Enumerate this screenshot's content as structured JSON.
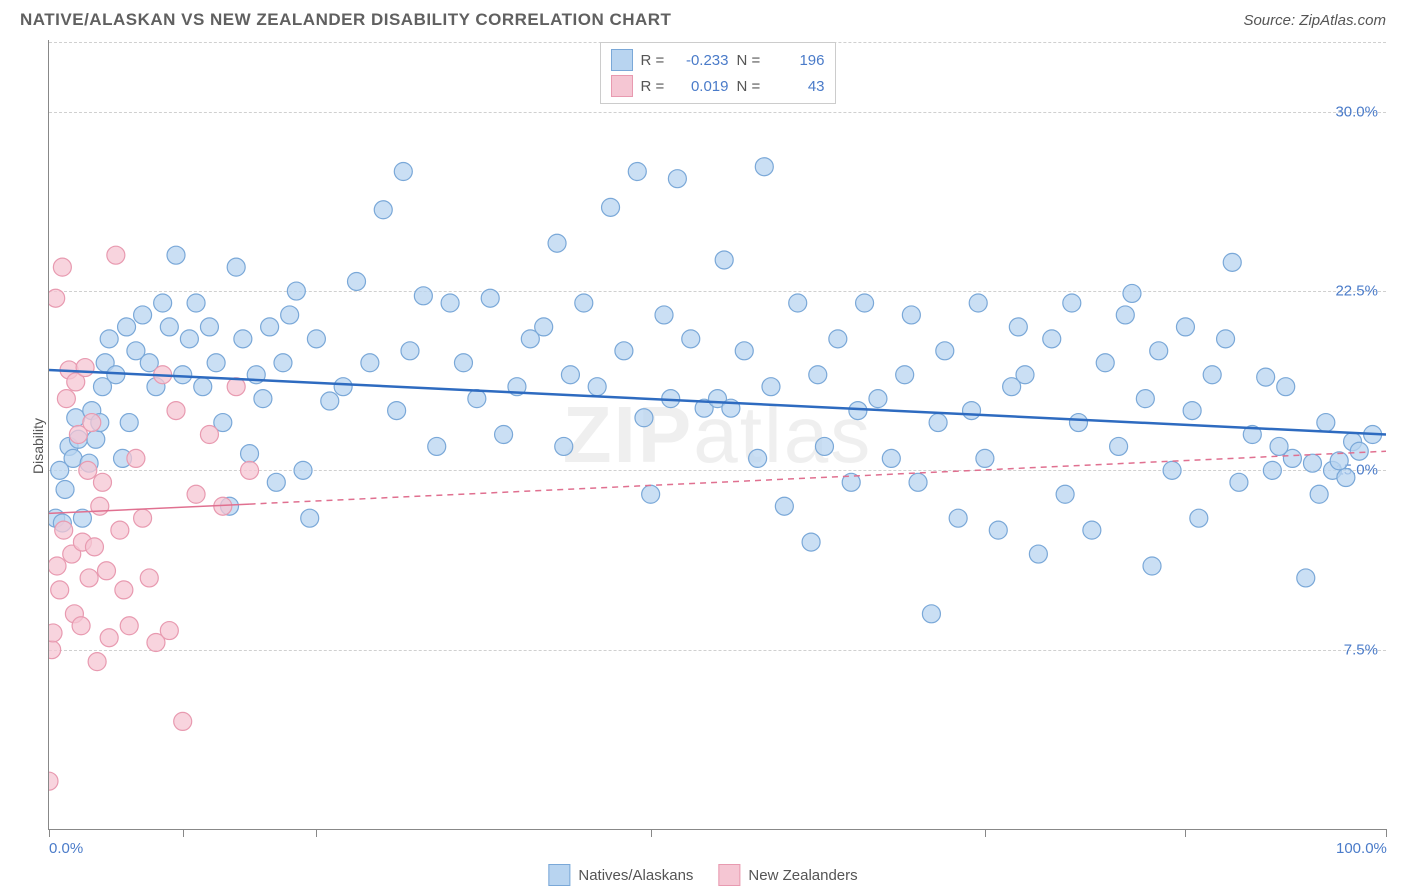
{
  "title": "NATIVE/ALASKAN VS NEW ZEALANDER DISABILITY CORRELATION CHART",
  "source": "Source: ZipAtlas.com",
  "ylabel": "Disability",
  "watermark_bold": "ZIP",
  "watermark_rest": "atlas",
  "chart": {
    "type": "scatter",
    "background_color": "#ffffff",
    "grid_color": "#d0d0d0",
    "axis_color": "#888888",
    "tick_label_color": "#4a7bc9",
    "xlim": [
      0,
      100
    ],
    "ylim": [
      0,
      33
    ],
    "yticks": [
      7.5,
      15.0,
      22.5,
      30.0
    ],
    "ytick_labels": [
      "7.5%",
      "15.0%",
      "22.5%",
      "30.0%"
    ],
    "xticks": [
      0,
      10,
      20,
      45,
      70,
      85,
      100
    ],
    "xtick_labels": {
      "0": "0.0%",
      "100": "100.0%"
    },
    "marker_radius": 9,
    "marker_stroke_width": 1.2,
    "series": [
      {
        "id": "natives",
        "label": "Natives/Alaskans",
        "fill": "#b8d4f0",
        "stroke": "#7aa8d8",
        "fill_opacity": 0.75,
        "R": "-0.233",
        "N": "196",
        "trendline": {
          "x1": 0,
          "y1": 19.2,
          "x2": 100,
          "y2": 16.5,
          "color": "#2e6bc0",
          "width": 2.5,
          "dash": "none"
        },
        "points": [
          [
            0.5,
            13.0
          ],
          [
            0.8,
            15.0
          ],
          [
            1.0,
            12.8
          ],
          [
            1.2,
            14.2
          ],
          [
            1.5,
            16.0
          ],
          [
            1.8,
            15.5
          ],
          [
            2.0,
            17.2
          ],
          [
            2.2,
            16.3
          ],
          [
            2.5,
            13.0
          ],
          [
            3.0,
            15.3
          ],
          [
            3.2,
            17.5
          ],
          [
            3.5,
            16.3
          ],
          [
            3.8,
            17.0
          ],
          [
            4.0,
            18.5
          ],
          [
            4.2,
            19.5
          ],
          [
            4.5,
            20.5
          ],
          [
            5.0,
            19.0
          ],
          [
            5.5,
            15.5
          ],
          [
            5.8,
            21.0
          ],
          [
            6.0,
            17.0
          ],
          [
            6.5,
            20.0
          ],
          [
            7.0,
            21.5
          ],
          [
            7.5,
            19.5
          ],
          [
            8.0,
            18.5
          ],
          [
            8.5,
            22.0
          ],
          [
            9.0,
            21.0
          ],
          [
            9.5,
            24.0
          ],
          [
            10.0,
            19.0
          ],
          [
            10.5,
            20.5
          ],
          [
            11.0,
            22.0
          ],
          [
            11.5,
            18.5
          ],
          [
            12.0,
            21.0
          ],
          [
            12.5,
            19.5
          ],
          [
            13.0,
            17.0
          ],
          [
            13.5,
            13.5
          ],
          [
            14.0,
            23.5
          ],
          [
            14.5,
            20.5
          ],
          [
            15.0,
            15.7
          ],
          [
            15.5,
            19.0
          ],
          [
            16.0,
            18.0
          ],
          [
            16.5,
            21.0
          ],
          [
            17.0,
            14.5
          ],
          [
            17.5,
            19.5
          ],
          [
            18.0,
            21.5
          ],
          [
            18.5,
            22.5
          ],
          [
            19.0,
            15.0
          ],
          [
            19.5,
            13.0
          ],
          [
            20.0,
            20.5
          ],
          [
            21.0,
            17.9
          ],
          [
            22.0,
            18.5
          ],
          [
            23.0,
            22.9
          ],
          [
            24.0,
            19.5
          ],
          [
            25.0,
            25.9
          ],
          [
            26.0,
            17.5
          ],
          [
            26.5,
            27.5
          ],
          [
            27.0,
            20.0
          ],
          [
            28.0,
            22.3
          ],
          [
            29.0,
            16.0
          ],
          [
            30.0,
            22.0
          ],
          [
            31.0,
            19.5
          ],
          [
            32.0,
            18.0
          ],
          [
            33.0,
            22.2
          ],
          [
            34.0,
            16.5
          ],
          [
            35.0,
            18.5
          ],
          [
            36.0,
            20.5
          ],
          [
            37.0,
            21.0
          ],
          [
            38.0,
            24.5
          ],
          [
            38.5,
            16.0
          ],
          [
            39.0,
            19.0
          ],
          [
            40.0,
            22.0
          ],
          [
            41.0,
            18.5
          ],
          [
            42.0,
            26.0
          ],
          [
            43.0,
            20.0
          ],
          [
            44.0,
            27.5
          ],
          [
            44.5,
            17.2
          ],
          [
            45.0,
            14.0
          ],
          [
            46.0,
            21.5
          ],
          [
            46.5,
            18.0
          ],
          [
            47.0,
            27.2
          ],
          [
            48.0,
            20.5
          ],
          [
            49.0,
            17.6
          ],
          [
            50.0,
            18.0
          ],
          [
            50.5,
            23.8
          ],
          [
            51.0,
            17.6
          ],
          [
            52.0,
            20.0
          ],
          [
            53.0,
            15.5
          ],
          [
            53.5,
            27.7
          ],
          [
            54.0,
            18.5
          ],
          [
            55.0,
            13.5
          ],
          [
            56.0,
            22.0
          ],
          [
            57.0,
            12.0
          ],
          [
            57.5,
            19.0
          ],
          [
            58.0,
            16.0
          ],
          [
            59.0,
            20.5
          ],
          [
            60.0,
            14.5
          ],
          [
            60.5,
            17.5
          ],
          [
            61.0,
            22.0
          ],
          [
            62.0,
            18.0
          ],
          [
            63.0,
            15.5
          ],
          [
            64.0,
            19.0
          ],
          [
            64.5,
            21.5
          ],
          [
            65.0,
            14.5
          ],
          [
            66.0,
            9.0
          ],
          [
            66.5,
            17.0
          ],
          [
            67.0,
            20.0
          ],
          [
            68.0,
            13.0
          ],
          [
            69.0,
            17.5
          ],
          [
            69.5,
            22.0
          ],
          [
            70.0,
            15.5
          ],
          [
            71.0,
            12.5
          ],
          [
            72.0,
            18.5
          ],
          [
            72.5,
            21.0
          ],
          [
            73.0,
            19.0
          ],
          [
            74.0,
            11.5
          ],
          [
            75.0,
            20.5
          ],
          [
            76.0,
            14.0
          ],
          [
            76.5,
            22.0
          ],
          [
            77.0,
            17.0
          ],
          [
            78.0,
            12.5
          ],
          [
            79.0,
            19.5
          ],
          [
            80.0,
            16.0
          ],
          [
            80.5,
            21.5
          ],
          [
            81.0,
            22.4
          ],
          [
            82.0,
            18.0
          ],
          [
            82.5,
            11.0
          ],
          [
            83.0,
            20.0
          ],
          [
            84.0,
            15.0
          ],
          [
            85.0,
            21.0
          ],
          [
            85.5,
            17.5
          ],
          [
            86.0,
            13.0
          ],
          [
            87.0,
            19.0
          ],
          [
            88.0,
            20.5
          ],
          [
            88.5,
            23.7
          ],
          [
            89.0,
            14.5
          ],
          [
            90.0,
            16.5
          ],
          [
            91.0,
            18.9
          ],
          [
            91.5,
            15.0
          ],
          [
            92.0,
            16.0
          ],
          [
            92.5,
            18.5
          ],
          [
            93.0,
            15.5
          ],
          [
            94.0,
            10.5
          ],
          [
            94.5,
            15.3
          ],
          [
            95.0,
            14.0
          ],
          [
            95.5,
            17.0
          ],
          [
            96.0,
            15.0
          ],
          [
            96.5,
            15.4
          ],
          [
            97.0,
            14.7
          ],
          [
            97.5,
            16.2
          ],
          [
            98.0,
            15.8
          ],
          [
            99.0,
            16.5
          ]
        ]
      },
      {
        "id": "newzealanders",
        "label": "New Zealanders",
        "fill": "#f5c6d3",
        "stroke": "#e89ab0",
        "fill_opacity": 0.75,
        "R": "0.019",
        "N": "43",
        "trendline": {
          "x1": 0,
          "y1": 13.2,
          "x2": 100,
          "y2": 15.8,
          "color": "#e07090",
          "width": 1.5,
          "dash_solid_until": 15
        },
        "points": [
          [
            0.0,
            2.0
          ],
          [
            0.2,
            7.5
          ],
          [
            0.3,
            8.2
          ],
          [
            0.5,
            22.2
          ],
          [
            0.6,
            11.0
          ],
          [
            0.8,
            10.0
          ],
          [
            1.0,
            23.5
          ],
          [
            1.1,
            12.5
          ],
          [
            1.3,
            18.0
          ],
          [
            1.5,
            19.2
          ],
          [
            1.7,
            11.5
          ],
          [
            1.9,
            9.0
          ],
          [
            2.0,
            18.7
          ],
          [
            2.2,
            16.5
          ],
          [
            2.4,
            8.5
          ],
          [
            2.5,
            12.0
          ],
          [
            2.7,
            19.3
          ],
          [
            2.9,
            15.0
          ],
          [
            3.0,
            10.5
          ],
          [
            3.2,
            17.0
          ],
          [
            3.4,
            11.8
          ],
          [
            3.6,
            7.0
          ],
          [
            3.8,
            13.5
          ],
          [
            4.0,
            14.5
          ],
          [
            4.3,
            10.8
          ],
          [
            4.5,
            8.0
          ],
          [
            5.0,
            24.0
          ],
          [
            5.3,
            12.5
          ],
          [
            5.6,
            10.0
          ],
          [
            6.0,
            8.5
          ],
          [
            6.5,
            15.5
          ],
          [
            7.0,
            13.0
          ],
          [
            7.5,
            10.5
          ],
          [
            8.0,
            7.8
          ],
          [
            8.5,
            19.0
          ],
          [
            9.0,
            8.3
          ],
          [
            9.5,
            17.5
          ],
          [
            10.0,
            4.5
          ],
          [
            11.0,
            14.0
          ],
          [
            12.0,
            16.5
          ],
          [
            13.0,
            13.5
          ],
          [
            14.0,
            18.5
          ],
          [
            15.0,
            15.0
          ]
        ]
      }
    ]
  },
  "legend_bottom": [
    {
      "label": "Natives/Alaskans",
      "fill": "#b8d4f0",
      "stroke": "#7aa8d8"
    },
    {
      "label": "New Zealanders",
      "fill": "#f5c6d3",
      "stroke": "#e89ab0"
    }
  ]
}
